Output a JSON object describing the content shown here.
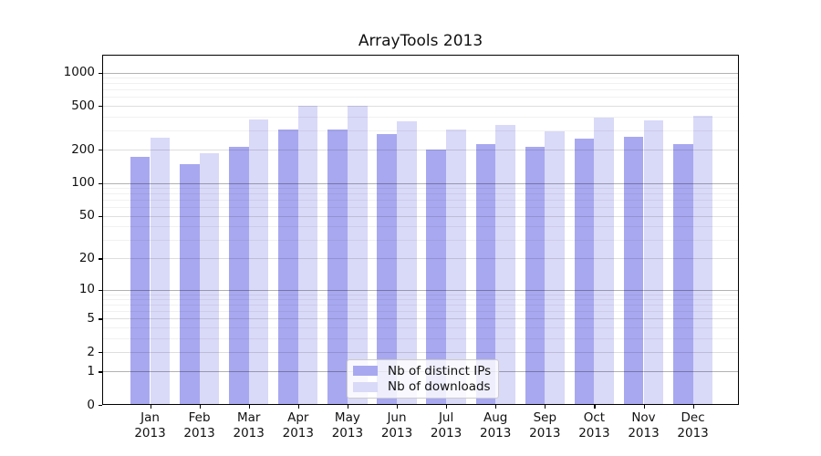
{
  "title": "ArrayTools 2013",
  "colors": {
    "distinct_ips_bar": "#a8a8f0",
    "downloads_bar": "#d9d9f8",
    "axis": "#000000",
    "legend_border": "#cccccc"
  },
  "legend": {
    "items": [
      {
        "key": "distinct_ips",
        "label": "Nb of distinct IPs"
      },
      {
        "key": "downloads",
        "label": "Nb of downloads"
      }
    ],
    "position": "lower center"
  },
  "chart_data": {
    "type": "bar",
    "title": "ArrayTools 2013",
    "categories": [
      "Jan",
      "Feb",
      "Mar",
      "Apr",
      "May",
      "Jun",
      "Jul",
      "Aug",
      "Sep",
      "Oct",
      "Nov",
      "Dec"
    ],
    "category_year": "2013",
    "series": [
      {
        "name": "Nb of distinct IPs",
        "color": "#a8a8f0",
        "values": [
          172,
          147,
          214,
          304,
          306,
          276,
          201,
          227,
          211,
          254,
          264,
          227
        ]
      },
      {
        "name": "Nb of downloads",
        "color": "#d9d9f8",
        "values": [
          257,
          187,
          374,
          500,
          500,
          366,
          303,
          334,
          294,
          392,
          371,
          410
        ]
      }
    ],
    "xlabel": "",
    "ylabel": "",
    "yscale": "log10(value+1)",
    "ylim": [
      0,
      1450
    ],
    "yticks": [
      1000,
      500,
      200,
      100,
      50,
      20,
      10,
      5,
      2,
      1,
      0
    ],
    "ytick_decades": [
      1,
      10,
      100,
      1000
    ],
    "minor_yticks": [
      3,
      4,
      6,
      7,
      8,
      9,
      30,
      40,
      60,
      70,
      80,
      90,
      300,
      400,
      600,
      700,
      800,
      900
    ],
    "grid": true,
    "legend_position": "lower center"
  }
}
